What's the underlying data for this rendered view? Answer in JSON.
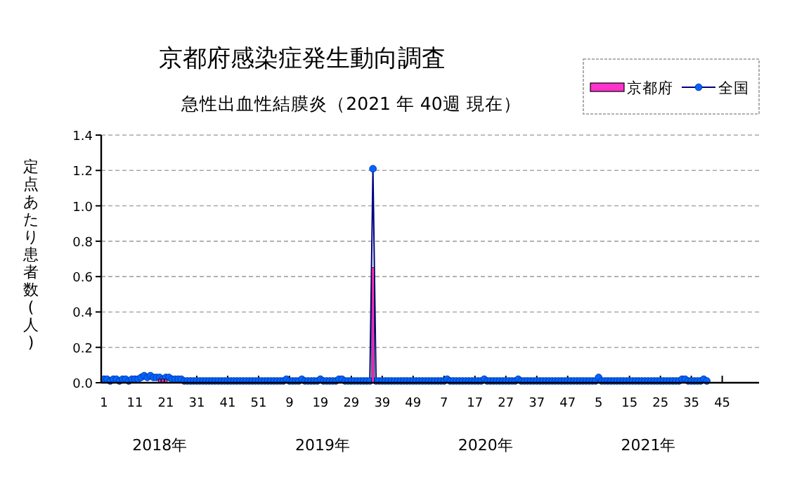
{
  "chart_data": {
    "type": "bar",
    "title": "京都府感染症発生動向調査",
    "subtitle": "急性出血性結膜炎（2021 年 40週 現在）",
    "ylabel": "定点あたり患者数(人)",
    "categories": [
      "1",
      null,
      null,
      null,
      null,
      null,
      null,
      null,
      null,
      null,
      "11",
      null,
      null,
      null,
      null,
      null,
      null,
      null,
      null,
      null,
      "21",
      null,
      null,
      null,
      null,
      null,
      null,
      null,
      null,
      null,
      "31",
      null,
      null,
      null,
      null,
      null,
      null,
      null,
      null,
      null,
      "41",
      null,
      null,
      null,
      null,
      null,
      null,
      null,
      null,
      null,
      "51",
      null,
      null,
      null,
      null,
      null,
      null,
      null,
      null,
      null,
      "9",
      null,
      null,
      null,
      null,
      null,
      null,
      null,
      null,
      null,
      "19",
      null,
      null,
      null,
      null,
      null,
      null,
      null,
      null,
      null,
      "29",
      null,
      null,
      null,
      null,
      null,
      null,
      null,
      null,
      null,
      "39",
      null,
      null,
      null,
      null,
      null,
      null,
      null,
      null,
      null,
      "49",
      null,
      null,
      null,
      null,
      null,
      null,
      null,
      null,
      null,
      "7",
      null,
      null,
      null,
      null,
      null,
      null,
      null,
      null,
      null,
      "17",
      null,
      null,
      null,
      null,
      null,
      null,
      null,
      null,
      null,
      "27",
      null,
      null,
      null,
      null,
      null,
      null,
      null,
      null,
      null,
      "37",
      null,
      null,
      null,
      null,
      null,
      null,
      null,
      null,
      null,
      "47",
      null,
      null,
      null,
      null,
      null,
      null,
      null,
      null,
      null,
      "5",
      null,
      null,
      null,
      null,
      null,
      null,
      null,
      null,
      null,
      "15",
      null,
      null,
      null,
      null,
      null,
      null,
      null,
      null,
      null,
      "25",
      null,
      null,
      null,
      null,
      null,
      null,
      null,
      null,
      null,
      "35",
      null,
      null,
      null,
      null,
      null,
      null,
      null,
      null,
      null,
      "45",
      null,
      null,
      null,
      null,
      null,
      null,
      null
    ],
    "series": [
      {
        "name": "京都府",
        "color": "#ff33cc",
        "values": [
          0,
          0,
          0,
          0,
          0,
          0,
          0,
          0,
          0,
          0,
          0,
          0,
          0,
          0,
          0,
          0,
          0,
          0,
          0.02,
          0.02,
          0.02,
          0,
          0,
          0,
          0,
          0,
          0,
          0,
          0,
          0,
          0,
          0,
          0,
          0,
          0,
          0,
          0,
          0,
          0,
          0,
          0,
          0,
          0,
          0,
          0,
          0,
          0,
          0,
          0,
          0,
          0,
          0,
          0,
          0,
          0,
          0,
          0,
          0,
          0,
          0,
          0,
          0,
          0,
          0,
          0,
          0,
          0,
          0,
          0,
          0,
          0,
          0,
          0,
          0,
          0,
          0,
          0,
          0,
          0,
          0,
          0,
          0,
          0,
          0,
          0,
          0,
          0,
          0.65,
          0,
          0,
          0,
          0,
          0,
          0,
          0,
          0,
          0,
          0,
          0,
          0,
          0,
          0,
          0,
          0,
          0,
          0,
          0,
          0,
          0,
          0,
          0,
          0,
          0,
          0,
          0,
          0,
          0,
          0,
          0,
          0,
          0,
          0,
          0,
          0,
          0,
          0,
          0,
          0,
          0,
          0,
          0,
          0,
          0,
          0,
          0,
          0,
          0,
          0,
          0,
          0,
          0,
          0,
          0,
          0,
          0,
          0,
          0,
          0,
          0,
          0,
          0,
          0,
          0,
          0,
          0,
          0,
          0,
          0,
          0,
          0,
          0,
          0,
          0,
          0,
          0,
          0,
          0,
          0,
          0,
          0,
          0,
          0,
          0,
          0,
          0,
          0,
          0,
          0,
          0,
          0,
          0,
          0,
          0,
          0,
          0,
          0,
          0,
          0,
          0,
          0,
          0,
          0,
          0,
          0,
          0,
          0,
          null,
          null,
          null,
          null,
          null,
          null,
          null,
          null,
          null,
          null,
          null,
          null
        ]
      },
      {
        "name": "全国",
        "type": "line",
        "color": "#0066ff",
        "marker": "circle",
        "values": [
          0.02,
          0.02,
          0.01,
          0.02,
          0.02,
          0.01,
          0.02,
          0.02,
          0.01,
          0.02,
          0.02,
          0.02,
          0.03,
          0.04,
          0.03,
          0.04,
          0.03,
          0.03,
          0.03,
          0.02,
          0.03,
          0.03,
          0.02,
          0.02,
          0.02,
          0.02,
          0.01,
          0.01,
          0.01,
          0.01,
          0.01,
          0.01,
          0.01,
          0.01,
          0.01,
          0.01,
          0.01,
          0.01,
          0.01,
          0.01,
          0.01,
          0.01,
          0.01,
          0.01,
          0.01,
          0.01,
          0.01,
          0.01,
          0.01,
          0.01,
          0.01,
          0.01,
          0.01,
          0.01,
          0.01,
          0.01,
          0.01,
          0.01,
          0.01,
          0.02,
          0.01,
          0.01,
          0.01,
          0.01,
          0.02,
          0.01,
          0.01,
          0.01,
          0.01,
          0.01,
          0.02,
          0.01,
          0.01,
          0.01,
          0.01,
          0.01,
          0.02,
          0.02,
          0.01,
          0.01,
          0.01,
          0.01,
          0.01,
          0.01,
          0.01,
          0.01,
          0.01,
          1.21,
          0.01,
          0.01,
          0.01,
          0.01,
          0.01,
          0.01,
          0.01,
          0.01,
          0.01,
          0.01,
          0.01,
          0.01,
          0.01,
          0.01,
          0.01,
          0.01,
          0.01,
          0.01,
          0.01,
          0.01,
          0.01,
          0.01,
          0.01,
          0.02,
          0.01,
          0.01,
          0.01,
          0.01,
          0.01,
          0.01,
          0.01,
          0.01,
          0.01,
          0.01,
          0.01,
          0.02,
          0.01,
          0.01,
          0.01,
          0.01,
          0.01,
          0.01,
          0.01,
          0.01,
          0.01,
          0.01,
          0.02,
          0.01,
          0.01,
          0.01,
          0.01,
          0.01,
          0.01,
          0.01,
          0.01,
          0.01,
          0.01,
          0.01,
          0.01,
          0.01,
          0.01,
          0.01,
          0.01,
          0.01,
          0.01,
          0.01,
          0.01,
          0.01,
          0.01,
          0.01,
          0.01,
          0.01,
          0.03,
          0.01,
          0.01,
          0.01,
          0.01,
          0.01,
          0.01,
          0.01,
          0.01,
          0.01,
          0.01,
          0.01,
          0.01,
          0.01,
          0.01,
          0.01,
          0.01,
          0.01,
          0.01,
          0.01,
          0.01,
          0.01,
          0.01,
          0.01,
          0.01,
          0.01,
          0.01,
          0.02,
          0.02,
          0.01,
          0.01,
          0.01,
          0.01,
          0.01,
          0.02,
          0.01,
          null,
          null,
          null,
          null,
          null,
          null,
          null,
          null,
          null,
          null,
          null,
          null
        ]
      }
    ],
    "ylim": [
      0,
      1.4
    ],
    "yticks": [
      {
        "value": 0,
        "label": "0.0"
      },
      {
        "value": 0.2,
        "label": "0.2"
      },
      {
        "value": 0.4,
        "label": "0.4"
      },
      {
        "value": 0.6,
        "label": "0.6"
      },
      {
        "value": 0.8,
        "label": "0.8"
      },
      {
        "value": 1,
        "label": "1.0"
      },
      {
        "value": 1.2,
        "label": "1.2"
      },
      {
        "value": 1.4,
        "label": "1.4"
      }
    ],
    "grid": "y",
    "legend": "top right",
    "annotations": [
      "2018年",
      "2019年",
      "2020年",
      "2021年"
    ]
  }
}
